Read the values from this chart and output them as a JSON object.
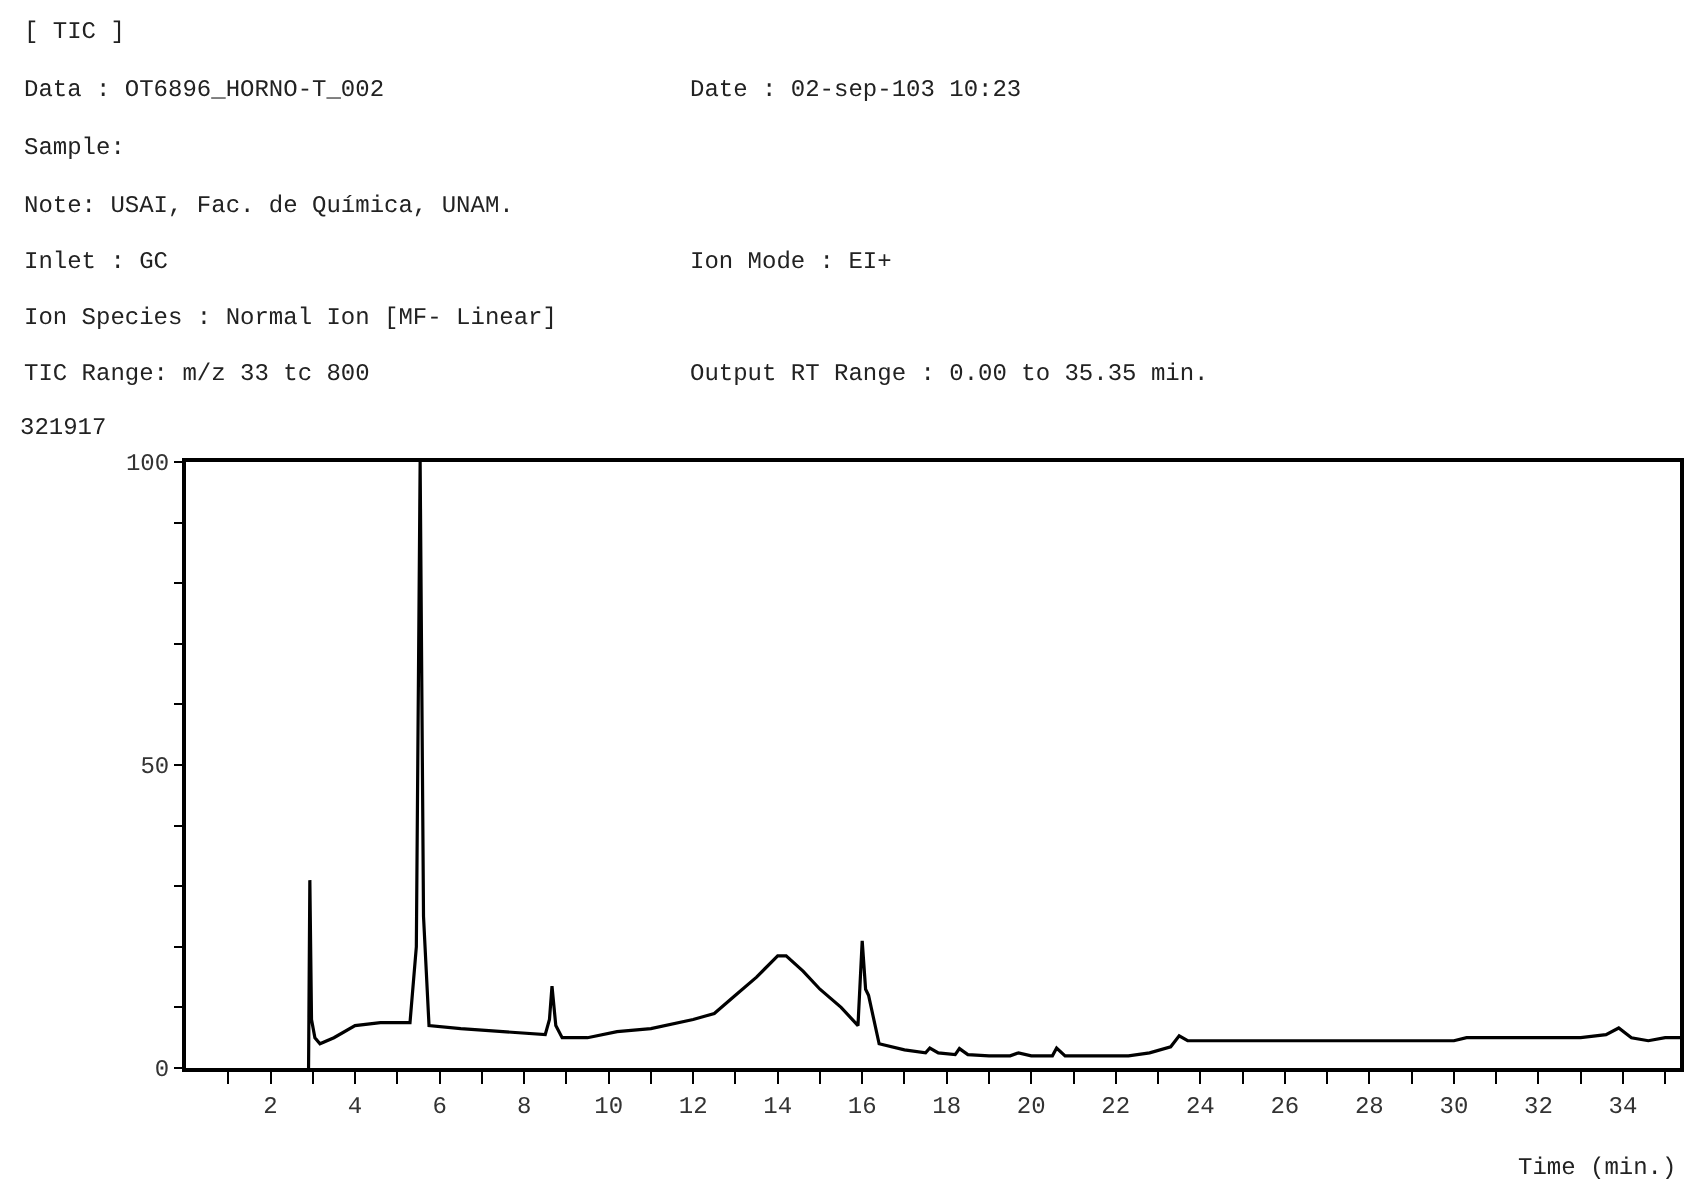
{
  "chart_data": {
    "type": "line",
    "title": "[ TIC ]",
    "xlabel": "Time (min.)",
    "annotations": [
      "Data : OT6896_HORNO-T_002",
      "Date : 02-sep-103 10:23",
      "Sample:",
      "Note: USAI, Fac. de Química, UNAM.",
      "Inlet : GC",
      "Ion Mode : EI+",
      "Ion Species : Normal Ion [MF- Linear]",
      "TIC Range: m/z 33 tc 800",
      "Output RT Range : 0.00 to 35.35 min.",
      "321917"
    ],
    "xlim": [
      0,
      35.35
    ],
    "ylim": [
      0,
      100
    ],
    "xticks": [
      {
        "value": 1,
        "label": null
      },
      2,
      {
        "value": 3,
        "label": null
      },
      4,
      {
        "value": 5,
        "label": null
      },
      6,
      {
        "value": 7,
        "label": null
      },
      8,
      {
        "value": 9,
        "label": null
      },
      10,
      {
        "value": 11,
        "label": null
      },
      12,
      {
        "value": 13,
        "label": null
      },
      14,
      {
        "value": 15,
        "label": null
      },
      16,
      {
        "value": 17,
        "label": null
      },
      18,
      {
        "value": 19,
        "label": null
      },
      20,
      {
        "value": 21,
        "label": null
      },
      22,
      {
        "value": 23,
        "label": null
      },
      24,
      {
        "value": 25,
        "label": null
      },
      26,
      {
        "value": 27,
        "label": null
      },
      28,
      {
        "value": 29,
        "label": null
      },
      30,
      {
        "value": 31,
        "label": null
      },
      32,
      {
        "value": 33,
        "label": null
      },
      34,
      {
        "value": 35,
        "label": null
      }
    ],
    "yticks": [
      0,
      {
        "value": 10,
        "label": null
      },
      {
        "value": 20,
        "label": null
      },
      {
        "value": 30,
        "label": null
      },
      {
        "value": 40,
        "label": null
      },
      50,
      {
        "value": 60,
        "label": null
      },
      {
        "value": 70,
        "label": null
      },
      {
        "value": 80,
        "label": null
      },
      {
        "value": 90,
        "label": null
      },
      100
    ],
    "series": [
      {
        "color": "#000000",
        "x": [
          2.9,
          2.93,
          2.97,
          3.05,
          3.17,
          3.5,
          4.0,
          4.6,
          5.3,
          5.45,
          5.54,
          5.62,
          5.75,
          6.5,
          7.5,
          8.5,
          8.6,
          8.66,
          8.75,
          8.9,
          9.5,
          10.2,
          11.0,
          12.0,
          12.5,
          13.0,
          13.5,
          14.0,
          14.2,
          14.6,
          15.0,
          15.5,
          15.9,
          16.0,
          16.08,
          16.15,
          16.4,
          17.0,
          17.5,
          17.6,
          17.8,
          18.2,
          18.3,
          18.5,
          19.0,
          19.5,
          19.7,
          20.0,
          20.5,
          20.6,
          20.8,
          21.5,
          22.3,
          22.8,
          23.3,
          23.5,
          23.7,
          25.0,
          27.0,
          30.0,
          30.3,
          32.0,
          33.0,
          33.6,
          33.9,
          34.2,
          34.6,
          35.0,
          35.35
        ],
        "values": [
          0,
          31,
          8,
          5,
          4,
          5,
          7,
          7.5,
          7.5,
          20,
          100,
          25,
          7,
          6.5,
          6,
          5.5,
          8,
          13.5,
          7,
          5,
          5,
          6,
          6.5,
          8,
          9,
          12,
          15,
          18.5,
          18.5,
          16,
          13,
          10,
          7,
          21,
          13,
          12,
          4,
          3,
          2.5,
          3.3,
          2.5,
          2.2,
          3.2,
          2.2,
          2,
          2,
          2.5,
          2,
          2,
          3.3,
          2,
          2,
          2,
          2.5,
          3.5,
          5.3,
          4.5,
          4.5,
          4.5,
          4.5,
          5,
          5,
          5,
          5.5,
          6.6,
          5,
          4.5,
          5,
          5
        ]
      }
    ]
  }
}
